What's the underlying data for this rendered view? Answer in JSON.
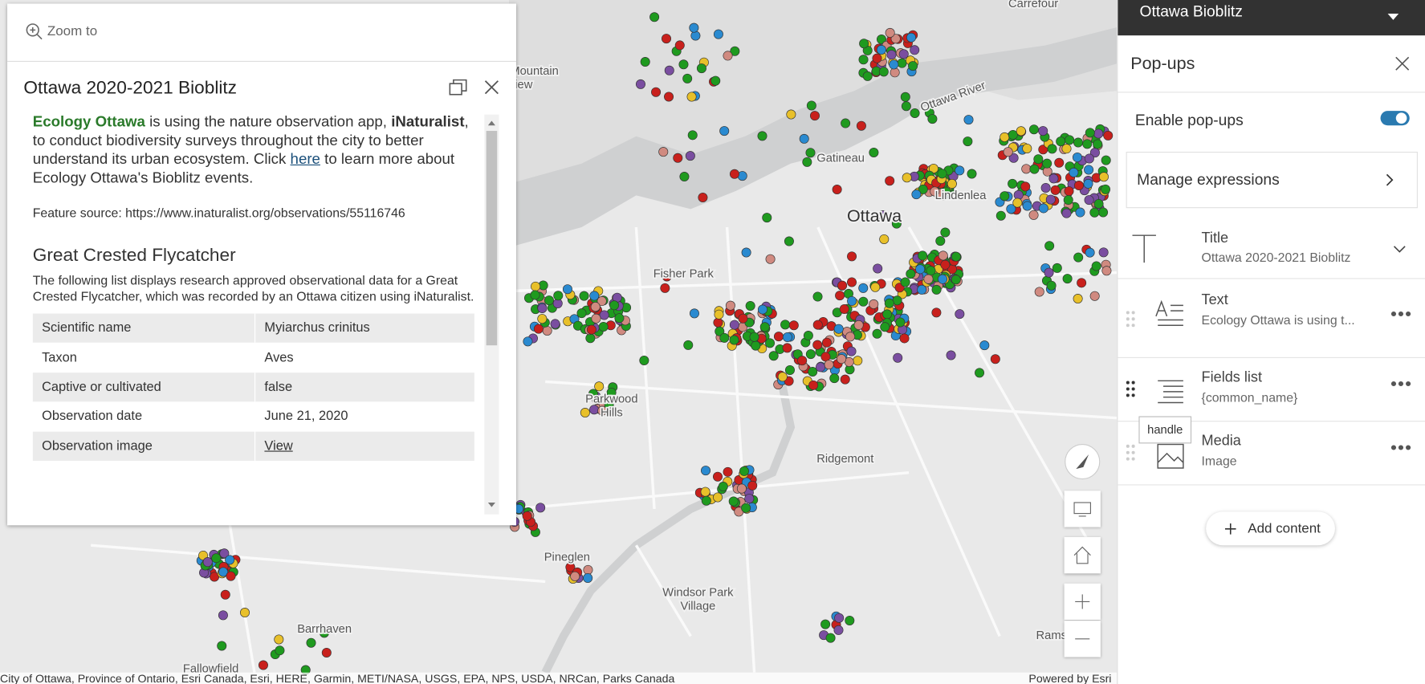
{
  "map": {
    "labels": [
      "Carrefour",
      "Mountain",
      "View",
      "Gatineau",
      "Ottawa",
      "Lindenlea",
      "Fisher Park",
      "Parkwood",
      "Hills",
      "Ridgemont",
      "Pineglen",
      "Windsor Park",
      "Village",
      "Barrhaven",
      "Fallowfield",
      "Rams",
      "Ottawa River"
    ],
    "attribution": "City of Ottawa, Province of Ontario, Esri Canada, Esri, HERE, Garmin, METI/NASA, USGS, EPA, NPS, USDA, NRCan, Parks Canada",
    "powered_by": "Powered by Esri"
  },
  "popup": {
    "zoom_to": "Zoom to",
    "title": "Ottawa 2020-2021 Bioblitz",
    "intro": [
      "Ecology Ottawa",
      " is using the nature observation app, ",
      "iNaturalist",
      ", to conduct biodiversity surveys throughout the city to better understand its urban ecosystem. Click ",
      "here",
      " to learn more about Ecology Ottawa's Bioblitz events."
    ],
    "feature_source": "Feature source: https://www.inaturalist.org/observations/55116746",
    "heading": "Great Crested Flycatcher",
    "description": "The following list displays research approved observational data for a Great Crested Flycatcher, which was recorded by an Ottawa citizen using iNaturalist.",
    "fields": [
      [
        "Scientific name",
        "Myiarchus crinitus"
      ],
      [
        "Taxon",
        "Aves"
      ],
      [
        "Captive or cultivated",
        "false"
      ],
      [
        "Observation date",
        "June 21, 2020"
      ],
      [
        "Observation image",
        "View"
      ]
    ]
  },
  "panel": {
    "app_title": "Ottawa Bioblitz",
    "header": "Pop-ups",
    "enable": "Enable pop-ups",
    "manage": "Manage expressions",
    "items": [
      {
        "label": "Title",
        "sub": "Ottawa 2020-2021 Bioblitz"
      },
      {
        "label": "Text",
        "sub": "Ecology Ottawa is using t..."
      },
      {
        "label": "Fields list",
        "sub": "{common_name}"
      },
      {
        "label": "Media",
        "sub": "Image"
      }
    ],
    "tooltip": "handle",
    "add": "Add content"
  }
}
